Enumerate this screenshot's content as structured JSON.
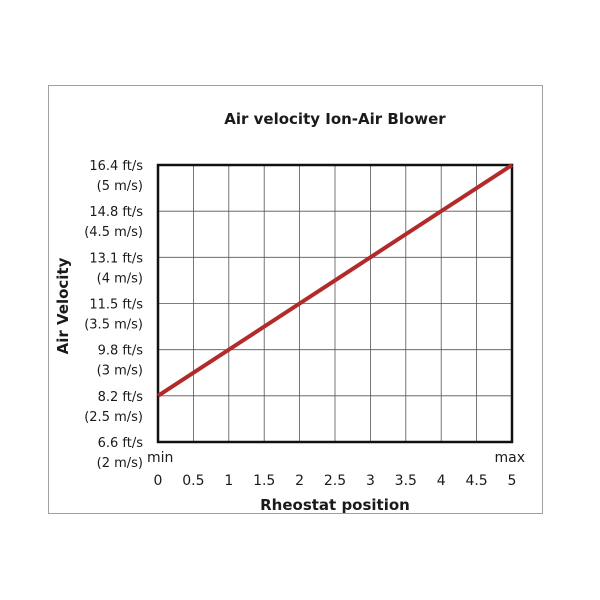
{
  "chart_data": {
    "type": "line",
    "title": "Air velocity Ion-Air Blower",
    "xlabel": "Rheostat position",
    "ylabel": "Air Velocity",
    "x_ticks": [
      "0",
      "0.5",
      "1",
      "1.5",
      "2",
      "2.5",
      "3",
      "3.5",
      "4",
      "4.5",
      "5"
    ],
    "x_end_labels": {
      "min": "min",
      "max": "max"
    },
    "y_ticks": [
      {
        "value": 2,
        "ft": "6.6 ft/s",
        "ms": "(2 m/s)"
      },
      {
        "value": 2.5,
        "ft": "8.2 ft/s",
        "ms": "(2.5 m/s)"
      },
      {
        "value": 3,
        "ft": "9.8 ft/s",
        "ms": "(3 m/s)"
      },
      {
        "value": 3.5,
        "ft": "11.5 ft/s",
        "ms": "(3.5 m/s)"
      },
      {
        "value": 4,
        "ft": "13.1 ft/s",
        "ms": "(4 m/s)"
      },
      {
        "value": 4.5,
        "ft": "14.8 ft/s",
        "ms": "(4.5 m/s)"
      },
      {
        "value": 5,
        "ft": "16.4 ft/s",
        "ms": "(5 m/s)"
      }
    ],
    "xlim": [
      0,
      5
    ],
    "ylim": [
      2,
      5
    ],
    "grid": true,
    "series": [
      {
        "x": [
          0,
          5
        ],
        "y": [
          2.5,
          5
        ],
        "color": "#b22a2a"
      }
    ]
  }
}
